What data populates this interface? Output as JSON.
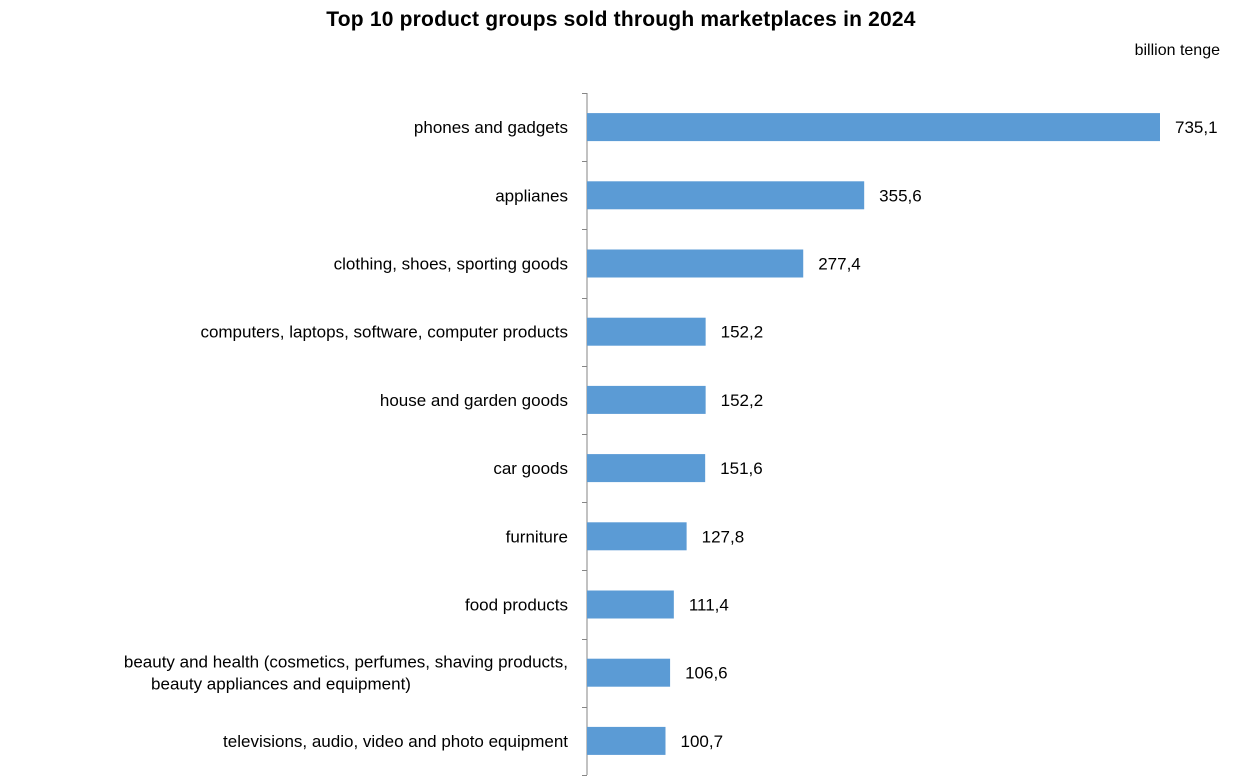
{
  "chart_data": {
    "type": "bar",
    "orientation": "horizontal",
    "title": "Top 10 product groups sold through marketplaces in 2024",
    "unit": "billion tenge",
    "categories": [
      "phones and gadgets",
      "applianes",
      "clothing, shoes, sporting goods",
      "computers, laptops, software, computer products",
      "house and garden goods",
      "car goods",
      "furniture",
      "food products",
      "beauty and health (cosmetics, perfumes, shaving products, beauty appliances and equipment)",
      "televisions, audio, video and photo equipment"
    ],
    "category_lines": [
      [
        "phones and gadgets"
      ],
      [
        "applianes"
      ],
      [
        "clothing, shoes, sporting goods"
      ],
      [
        "computers, laptops, software, computer products"
      ],
      [
        "house and garden goods"
      ],
      [
        "car goods"
      ],
      [
        "furniture"
      ],
      [
        "food products"
      ],
      [
        "beauty and health (cosmetics, perfumes, shaving products,",
        "beauty appliances and equipment)"
      ],
      [
        "televisions, audio, video and photo equipment"
      ]
    ],
    "values": [
      735.1,
      355.6,
      277.4,
      152.2,
      152.2,
      151.6,
      127.8,
      111.4,
      106.6,
      100.7
    ],
    "data_labels": [
      "735,1",
      "355,6",
      "277,4",
      "152,2",
      "152,2",
      "151,6",
      "127,8",
      "111,4",
      "106,6",
      "100,7"
    ],
    "xlim": [
      0,
      735.1
    ],
    "grid": false,
    "legend": "none",
    "bar_color": "#5b9bd5"
  }
}
